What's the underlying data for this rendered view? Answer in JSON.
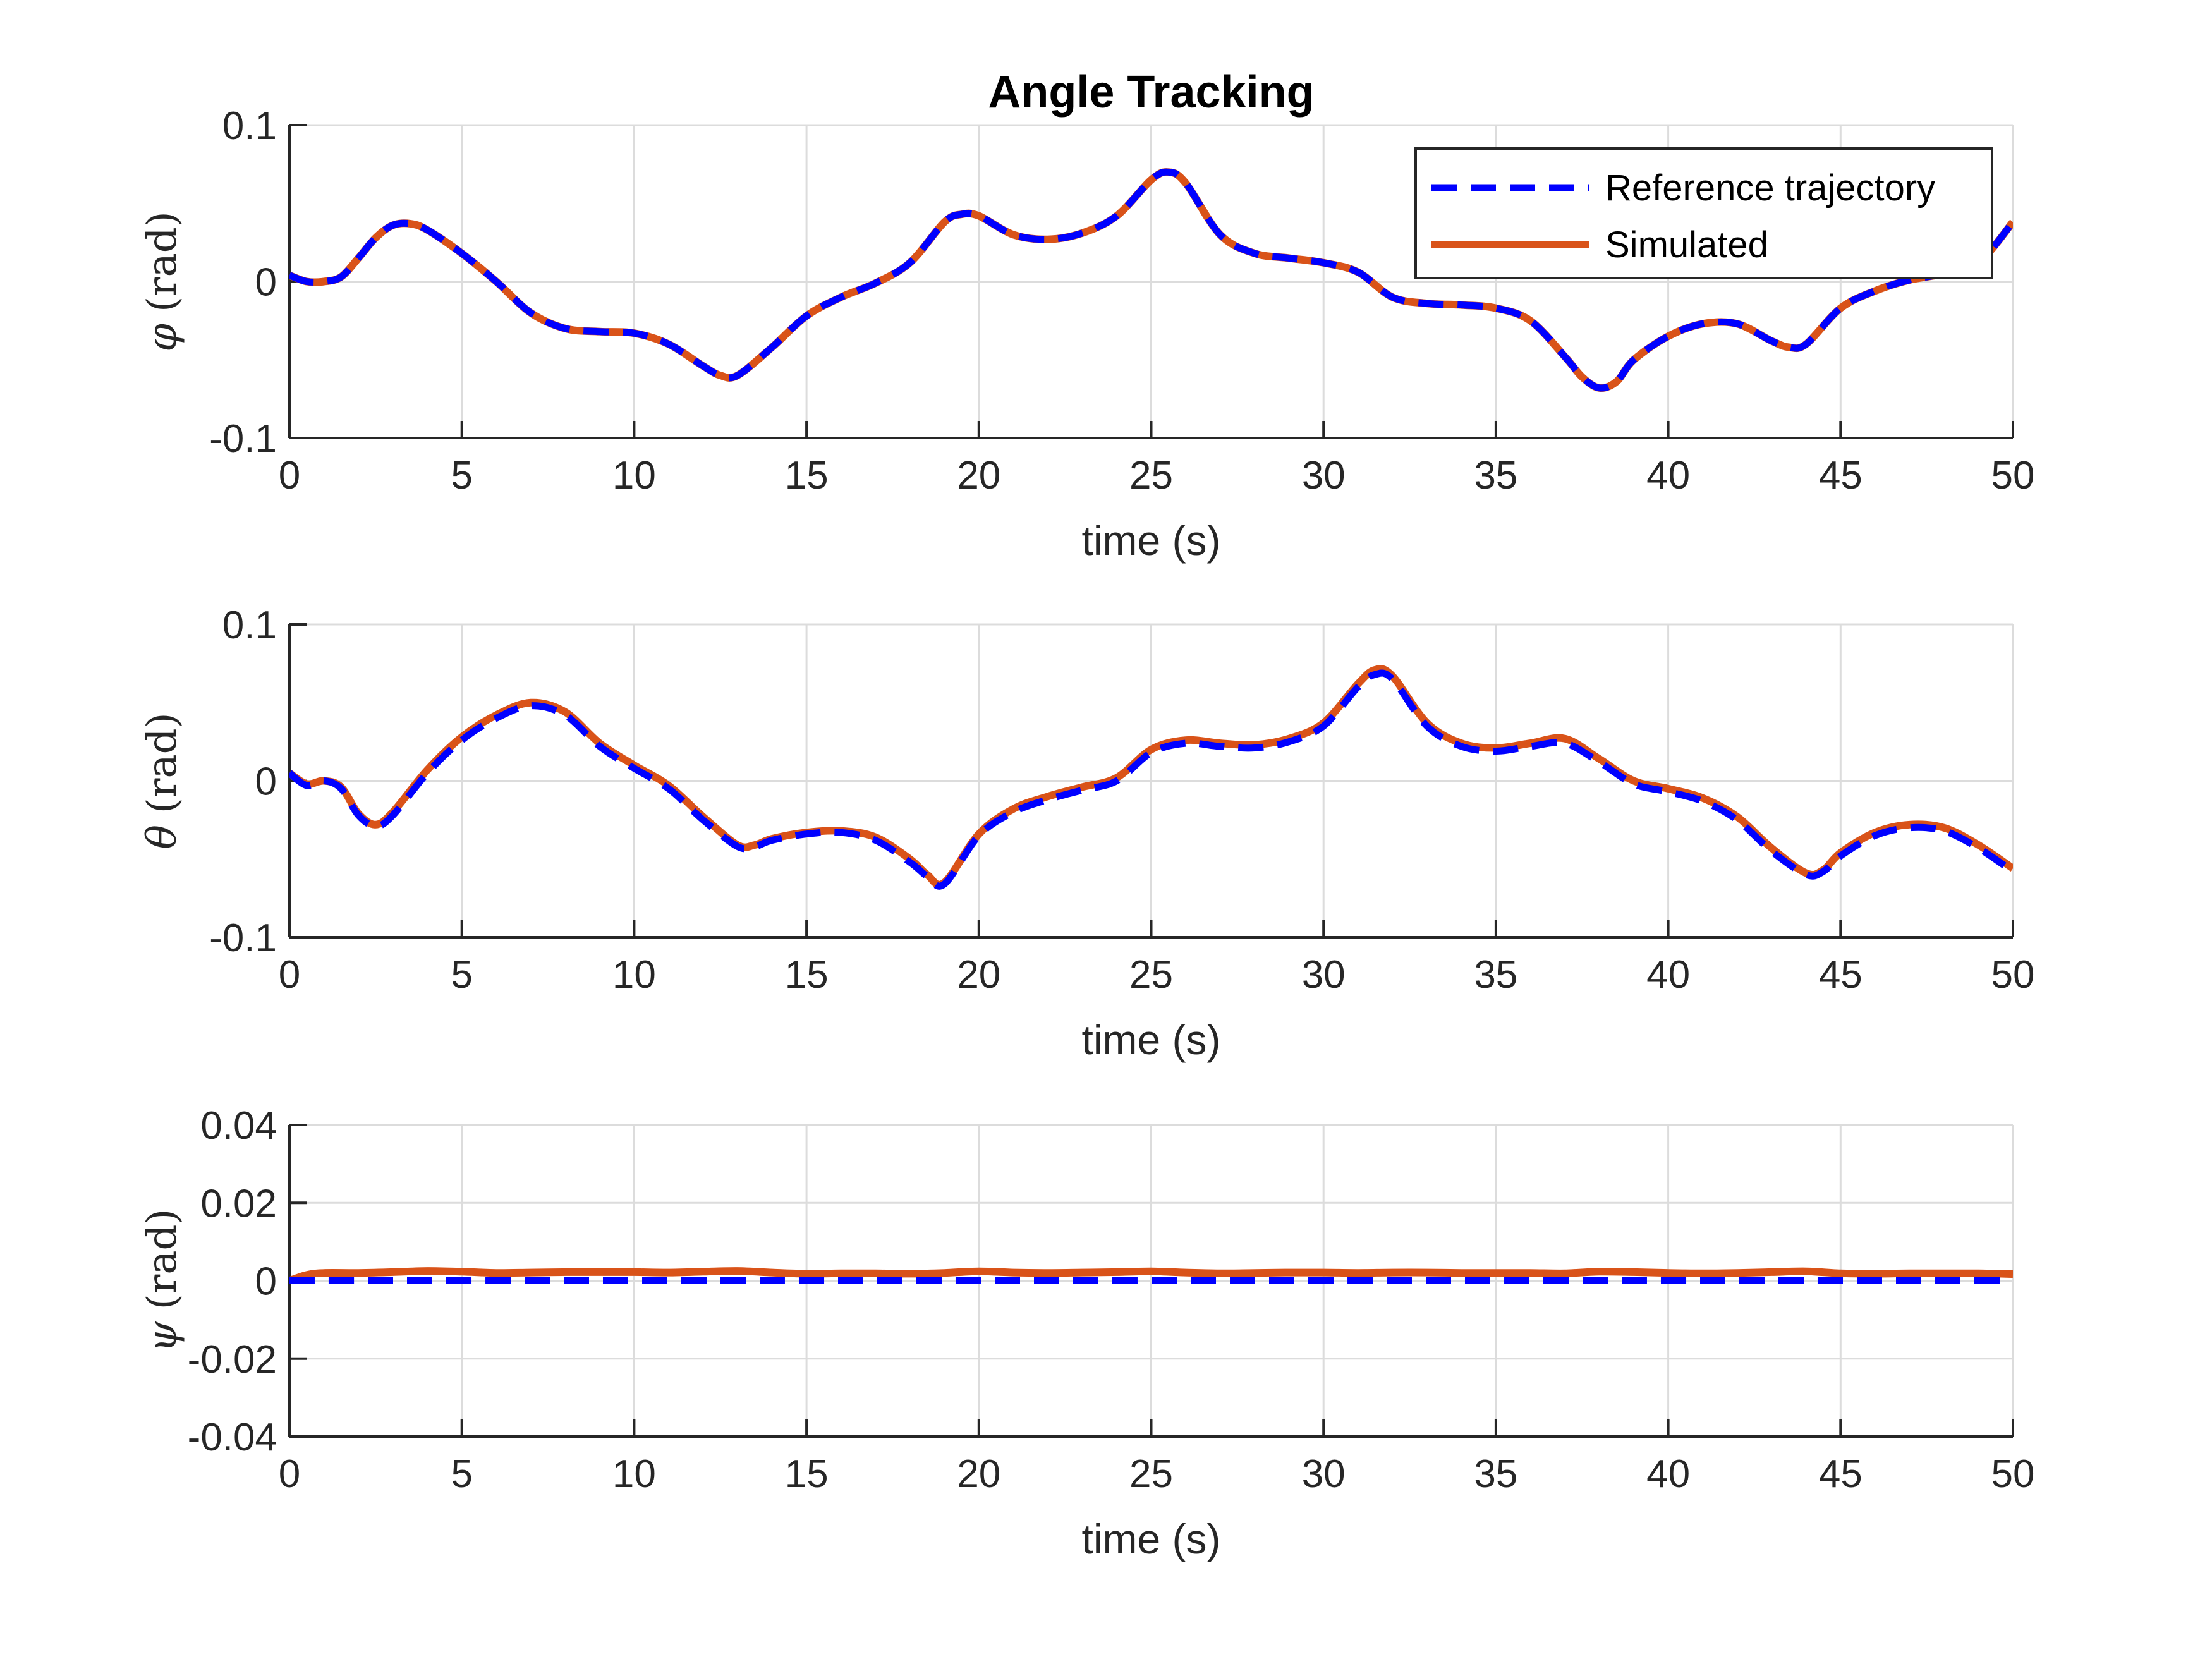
{
  "chart_data": [
    {
      "type": "line",
      "title": "Angle Tracking",
      "xlabel": "time (s)",
      "ylabel": {
        "symbol": "φ",
        "unit": "(rad)"
      },
      "xlim": [
        0,
        50
      ],
      "ylim": [
        -0.1,
        0.1
      ],
      "xticks": [
        "0",
        "5",
        "10",
        "15",
        "20",
        "25",
        "30",
        "35",
        "40",
        "45",
        "50"
      ],
      "yticks": [
        "-0.1",
        "0",
        "0.1"
      ],
      "grid": true,
      "legend": {
        "position": "top-right",
        "entries": [
          "Reference trajectory",
          "Simulated"
        ]
      },
      "x": [
        0,
        0.5,
        1,
        1.5,
        2,
        2.5,
        3,
        3.5,
        4,
        5,
        6,
        7,
        8,
        9,
        10,
        11,
        12,
        12.5,
        13,
        14,
        15,
        16,
        17,
        18,
        19,
        19.5,
        20,
        21,
        22,
        23,
        24,
        25,
        25.5,
        26,
        27,
        28,
        29,
        30,
        31,
        32,
        33,
        34,
        35,
        36,
        37,
        37.5,
        38,
        38.5,
        39,
        40,
        41,
        42,
        43,
        43.5,
        44,
        45,
        46,
        47,
        48,
        49,
        50
      ],
      "series": [
        {
          "name": "Reference trajectory",
          "values": [
            0.004,
            0.0,
            0.0,
            0.003,
            0.015,
            0.028,
            0.036,
            0.037,
            0.033,
            0.018,
            0.0,
            -0.02,
            -0.03,
            -0.032,
            -0.033,
            -0.04,
            -0.054,
            -0.06,
            -0.06,
            -0.042,
            -0.022,
            -0.01,
            -0.001,
            0.012,
            0.038,
            0.043,
            0.042,
            0.03,
            0.027,
            0.031,
            0.042,
            0.065,
            0.07,
            0.063,
            0.03,
            0.018,
            0.015,
            0.012,
            0.006,
            -0.01,
            -0.014,
            -0.015,
            -0.017,
            -0.025,
            -0.048,
            -0.061,
            -0.068,
            -0.064,
            -0.05,
            -0.035,
            -0.027,
            -0.027,
            -0.038,
            -0.042,
            -0.04,
            -0.017,
            -0.006,
            0.001,
            0.005,
            0.012,
            0.038
          ]
        },
        {
          "name": "Simulated",
          "values": [
            0.004,
            0.0,
            0.0,
            0.003,
            0.015,
            0.028,
            0.036,
            0.037,
            0.033,
            0.018,
            0.0,
            -0.02,
            -0.03,
            -0.032,
            -0.033,
            -0.04,
            -0.054,
            -0.06,
            -0.06,
            -0.042,
            -0.022,
            -0.01,
            -0.001,
            0.012,
            0.038,
            0.043,
            0.042,
            0.03,
            0.027,
            0.031,
            0.042,
            0.065,
            0.07,
            0.063,
            0.03,
            0.018,
            0.015,
            0.012,
            0.006,
            -0.01,
            -0.014,
            -0.015,
            -0.017,
            -0.025,
            -0.048,
            -0.061,
            -0.068,
            -0.064,
            -0.05,
            -0.035,
            -0.027,
            -0.027,
            -0.038,
            -0.042,
            -0.04,
            -0.017,
            -0.006,
            0.001,
            0.005,
            0.012,
            0.038
          ]
        }
      ]
    },
    {
      "type": "line",
      "title": "",
      "xlabel": "time (s)",
      "ylabel": {
        "symbol": "θ",
        "unit": "(rad)"
      },
      "xlim": [
        0,
        50
      ],
      "ylim": [
        -0.1,
        0.1
      ],
      "xticks": [
        "0",
        "5",
        "10",
        "15",
        "20",
        "25",
        "30",
        "35",
        "40",
        "45",
        "50"
      ],
      "yticks": [
        "-0.1",
        "0",
        "0.1"
      ],
      "grid": true,
      "x": [
        0,
        0.5,
        1,
        1.5,
        2,
        2.5,
        3,
        4,
        5,
        6,
        7,
        8,
        9,
        10,
        11,
        12,
        13,
        13.5,
        14,
        15,
        16,
        17,
        18,
        18.5,
        19,
        20,
        21,
        22,
        23,
        24,
        25,
        26,
        27,
        28,
        29,
        30,
        31,
        31.5,
        32,
        33,
        34,
        35,
        36,
        37,
        38,
        39,
        40,
        41,
        42,
        43,
        44,
        44.5,
        45,
        46,
        47,
        48,
        49,
        50
      ],
      "series": [
        {
          "name": "Reference trajectory",
          "values": [
            0.005,
            -0.003,
            0.0,
            -0.005,
            -0.022,
            -0.029,
            -0.022,
            0.005,
            0.026,
            0.04,
            0.048,
            0.042,
            0.022,
            0.008,
            -0.005,
            -0.025,
            -0.042,
            -0.042,
            -0.038,
            -0.034,
            -0.033,
            -0.038,
            -0.052,
            -0.061,
            -0.066,
            -0.035,
            -0.02,
            -0.012,
            -0.006,
            0.0,
            0.018,
            0.024,
            0.022,
            0.021,
            0.025,
            0.035,
            0.06,
            0.068,
            0.065,
            0.035,
            0.022,
            0.019,
            0.022,
            0.024,
            0.012,
            -0.002,
            -0.007,
            -0.013,
            -0.025,
            -0.045,
            -0.06,
            -0.058,
            -0.048,
            -0.035,
            -0.03,
            -0.032,
            -0.043,
            -0.058
          ]
        },
        {
          "name": "Simulated",
          "values": [
            0.005,
            -0.002,
            0.0,
            -0.004,
            -0.021,
            -0.028,
            -0.02,
            0.007,
            0.028,
            0.042,
            0.05,
            0.044,
            0.024,
            0.01,
            -0.003,
            -0.023,
            -0.041,
            -0.041,
            -0.037,
            -0.033,
            -0.032,
            -0.036,
            -0.05,
            -0.06,
            -0.065,
            -0.034,
            -0.018,
            -0.01,
            -0.004,
            0.002,
            0.02,
            0.026,
            0.024,
            0.023,
            0.027,
            0.037,
            0.062,
            0.071,
            0.067,
            0.037,
            0.024,
            0.021,
            0.024,
            0.027,
            0.014,
            0.0,
            -0.005,
            -0.011,
            -0.023,
            -0.043,
            -0.059,
            -0.057,
            -0.046,
            -0.033,
            -0.028,
            -0.03,
            -0.041,
            -0.056
          ]
        }
      ]
    },
    {
      "type": "line",
      "title": "",
      "xlabel": "time (s)",
      "ylabel": {
        "symbol": "ψ",
        "unit": "(rad)"
      },
      "xlim": [
        0,
        50
      ],
      "ylim": [
        -0.04,
        0.04
      ],
      "xticks": [
        "0",
        "5",
        "10",
        "15",
        "20",
        "25",
        "30",
        "35",
        "40",
        "45",
        "50"
      ],
      "yticks": [
        "-0.04",
        "-0.02",
        "0",
        "0.02",
        "0.04"
      ],
      "grid": true,
      "x": [
        0,
        0.5,
        1,
        2,
        3,
        4,
        5,
        6,
        7,
        8,
        9,
        10,
        11,
        12,
        13,
        14,
        15,
        16,
        17,
        18,
        19,
        20,
        21,
        22,
        23,
        24,
        25,
        26,
        27,
        28,
        29,
        30,
        31,
        32,
        33,
        34,
        35,
        36,
        37,
        38,
        39,
        40,
        41,
        42,
        43,
        44,
        45,
        46,
        47,
        48,
        49,
        50
      ],
      "series": [
        {
          "name": "Reference trajectory",
          "values": [
            0,
            0,
            0,
            0,
            0,
            0,
            0,
            0,
            0,
            0,
            0,
            0,
            0,
            0,
            0,
            0,
            0,
            0,
            0,
            0,
            0,
            0,
            0,
            0,
            0,
            0,
            0,
            0,
            0,
            0,
            0,
            0,
            0,
            0,
            0,
            0,
            0,
            0,
            0,
            0,
            0,
            0,
            0,
            0,
            0,
            0,
            0,
            0,
            0,
            0,
            0,
            0
          ]
        },
        {
          "name": "Simulated",
          "values": [
            0.0,
            0.0015,
            0.002,
            0.002,
            0.0022,
            0.0025,
            0.0023,
            0.002,
            0.0021,
            0.0022,
            0.0022,
            0.0022,
            0.0021,
            0.0023,
            0.0025,
            0.0021,
            0.0018,
            0.0019,
            0.0019,
            0.0018,
            0.002,
            0.0024,
            0.0021,
            0.002,
            0.0021,
            0.0022,
            0.0024,
            0.0021,
            0.0019,
            0.002,
            0.0021,
            0.0021,
            0.002,
            0.0021,
            0.0021,
            0.002,
            0.002,
            0.002,
            0.0019,
            0.0023,
            0.0022,
            0.002,
            0.0019,
            0.002,
            0.0022,
            0.0024,
            0.0019,
            0.0018,
            0.0019,
            0.0019,
            0.0019,
            0.0017
          ]
        }
      ]
    }
  ],
  "colors": {
    "reference": "#0000ff",
    "simulated": "#d95319",
    "grid": "#dcdcdc",
    "axis": "#262626"
  }
}
